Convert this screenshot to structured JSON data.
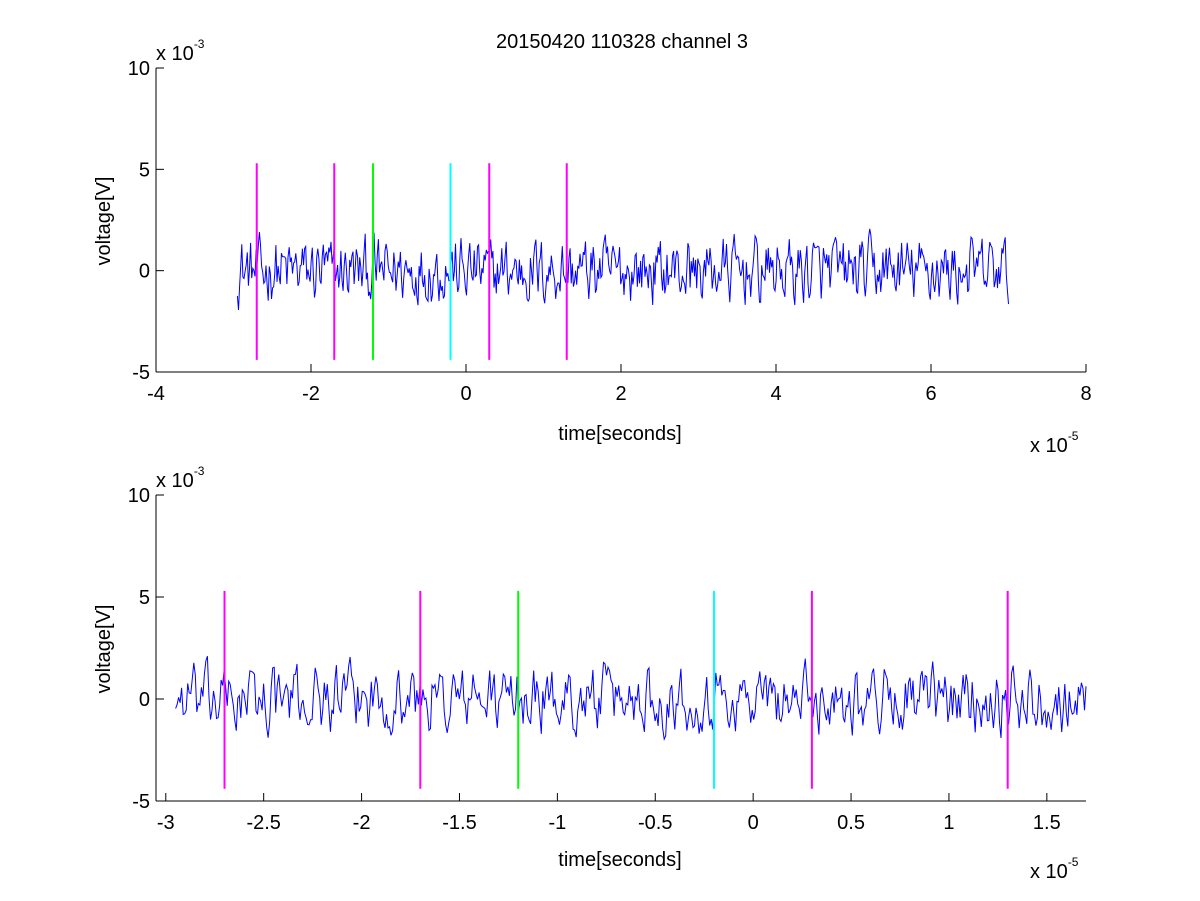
{
  "chart_data": [
    {
      "type": "line",
      "title": "20150420 110328 channel 3",
      "xlabel": "time[seconds]",
      "ylabel": "voltage[V]",
      "x_multiplier": {
        "base": "x 10",
        "exp": "-5"
      },
      "y_multiplier": {
        "base": "x 10",
        "exp": "-3"
      },
      "xlim": [
        -4,
        8
      ],
      "ylim": [
        -5,
        10
      ],
      "xticks": [
        -4,
        -2,
        0,
        2,
        4,
        6,
        8
      ],
      "xtick_labels": [
        "-4",
        "-2",
        "0",
        "2",
        "4",
        "6",
        "8"
      ],
      "yticks": [
        -5,
        0,
        5,
        10
      ],
      "ytick_labels": [
        "-5",
        "0",
        "5",
        "10"
      ],
      "signal": {
        "color": "#0000ff",
        "x_start": -2.95,
        "x_end": 7.0
      },
      "markers": [
        {
          "x": -2.7,
          "color": "#ff00ff",
          "ymin": -4.4,
          "ymax": 5.3
        },
        {
          "x": -1.7,
          "color": "#ff00ff",
          "ymin": -4.4,
          "ymax": 5.3
        },
        {
          "x": -1.2,
          "color": "#00ff00",
          "ymin": -4.4,
          "ymax": 5.3
        },
        {
          "x": -0.2,
          "color": "#00ffff",
          "ymin": -4.4,
          "ymax": 5.3
        },
        {
          "x": 0.3,
          "color": "#ff00ff",
          "ymin": -4.4,
          "ymax": 5.3
        },
        {
          "x": 1.3,
          "color": "#ff00ff",
          "ymin": -4.4,
          "ymax": 5.3
        }
      ],
      "grid": false
    },
    {
      "type": "line",
      "title": "",
      "xlabel": "time[seconds]",
      "ylabel": "voltage[V]",
      "x_multiplier": {
        "base": "x 10",
        "exp": "-5"
      },
      "y_multiplier": {
        "base": "x 10",
        "exp": "-3"
      },
      "xlim": [
        -3.05,
        1.7
      ],
      "ylim": [
        -5,
        10
      ],
      "xticks": [
        -3,
        -2.5,
        -2,
        -1.5,
        -1,
        -0.5,
        0,
        0.5,
        1,
        1.5
      ],
      "xtick_labels": [
        "-3",
        "-2.5",
        "-2",
        "-1.5",
        "-1",
        "-0.5",
        "0",
        "0.5",
        "1",
        "1.5"
      ],
      "yticks": [
        -5,
        0,
        5,
        10
      ],
      "ytick_labels": [
        "-5",
        "0",
        "5",
        "10"
      ],
      "signal": {
        "color": "#0000ff",
        "x_start": -2.95,
        "x_end": 1.7
      },
      "markers": [
        {
          "x": -2.7,
          "color": "#ff00ff",
          "ymin": -4.4,
          "ymax": 5.3
        },
        {
          "x": -1.7,
          "color": "#ff00ff",
          "ymin": -4.4,
          "ymax": 5.3
        },
        {
          "x": -1.2,
          "color": "#00ff00",
          "ymin": -4.4,
          "ymax": 5.3
        },
        {
          "x": -0.2,
          "color": "#00ffff",
          "ymin": -4.4,
          "ymax": 5.3
        },
        {
          "x": 0.3,
          "color": "#ff00ff",
          "ymin": -4.4,
          "ymax": 5.3
        },
        {
          "x": 1.3,
          "color": "#ff00ff",
          "ymin": -4.4,
          "ymax": 5.3
        }
      ],
      "grid": false
    }
  ]
}
